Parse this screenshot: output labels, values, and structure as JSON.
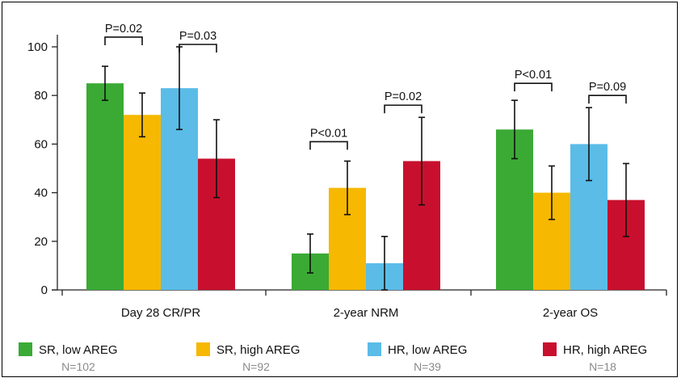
{
  "chart_data": {
    "type": "bar",
    "categories": [
      "Day 28 CR/PR",
      "2-year NRM",
      "2-year OS"
    ],
    "ylim": [
      0,
      100
    ],
    "yticks": [
      0,
      20,
      40,
      60,
      80,
      100
    ],
    "series": [
      {
        "name": "SR, low AREG",
        "n_label": "N=102",
        "color": "#3aaa35",
        "values": [
          85,
          15,
          66
        ],
        "err_low": [
          78,
          7,
          54
        ],
        "err_high": [
          92,
          23,
          78
        ]
      },
      {
        "name": "SR, high AREG",
        "n_label": "N=92",
        "color": "#f6b800",
        "values": [
          72,
          42,
          40
        ],
        "err_low": [
          63,
          31,
          29
        ],
        "err_high": [
          81,
          53,
          51
        ]
      },
      {
        "name": "HR, low AREG",
        "n_label": "N=39",
        "color": "#5bbce8",
        "values": [
          83,
          11,
          60
        ],
        "err_low": [
          66,
          0,
          45
        ],
        "err_high": [
          100,
          22,
          75
        ]
      },
      {
        "name": "HR, high AREG",
        "n_label": "N=18",
        "color": "#c8102e",
        "values": [
          54,
          53,
          37
        ],
        "err_low": [
          38,
          35,
          22
        ],
        "err_high": [
          70,
          71,
          52
        ]
      }
    ],
    "annotations": [
      {
        "category": 0,
        "from_series": 0,
        "to_series": 1,
        "text": "P=0.02",
        "level": 104
      },
      {
        "category": 0,
        "from_series": 2,
        "to_series": 3,
        "text": "P=0.03",
        "level": 101
      },
      {
        "category": 1,
        "from_series": 0,
        "to_series": 1,
        "text": "P<0.01",
        "level": 61
      },
      {
        "category": 1,
        "from_series": 2,
        "to_series": 3,
        "text": "P=0.02",
        "level": 76
      },
      {
        "category": 2,
        "from_series": 0,
        "to_series": 1,
        "text": "P<0.01",
        "level": 85
      },
      {
        "category": 2,
        "from_series": 2,
        "to_series": 3,
        "text": "P=0.09",
        "level": 80
      }
    ]
  }
}
